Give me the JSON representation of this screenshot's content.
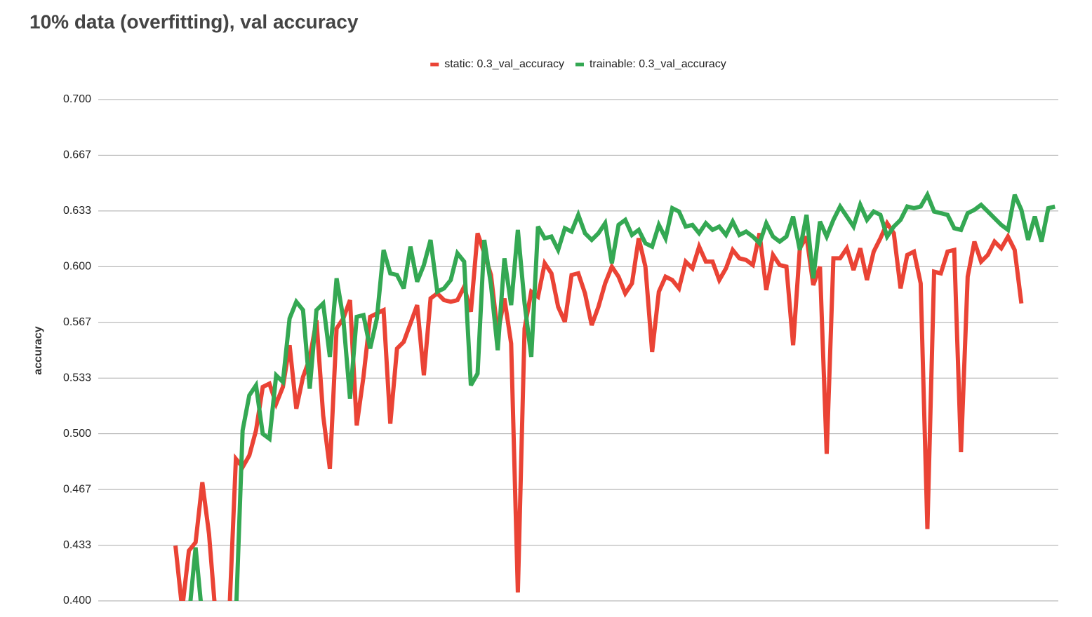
{
  "chart_data": {
    "type": "line",
    "title": "10% data (overfitting), val accuracy",
    "y_label": "accuracy",
    "categories": [
      null,
      null,
      null,
      null,
      null,
      null,
      null,
      null,
      null,
      null,
      null,
      null,
      null,
      null,
      null,
      null,
      null,
      null,
      null,
      null,
      null,
      null,
      null,
      null,
      null,
      null,
      null,
      null,
      null,
      null,
      null,
      null,
      null,
      null,
      null,
      null,
      null,
      null,
      null,
      null,
      null,
      null,
      null,
      null,
      null,
      null,
      null,
      null,
      null,
      null,
      null,
      null,
      null,
      null,
      null,
      null,
      null,
      null,
      null,
      null,
      null,
      null,
      null,
      null,
      null,
      null,
      null,
      null,
      null,
      null,
      null,
      null,
      null,
      null,
      null,
      null,
      null,
      null,
      null,
      null,
      null,
      null,
      null,
      null,
      null,
      null,
      null,
      null,
      null,
      null,
      null,
      null,
      null,
      null,
      null,
      null,
      null,
      null,
      null,
      null,
      null,
      null,
      null,
      null,
      null,
      null,
      null,
      null,
      null,
      null,
      null,
      null,
      null,
      null,
      null,
      null,
      null,
      null,
      null,
      null,
      null,
      null,
      null,
      null,
      null,
      null,
      null,
      null,
      null,
      null,
      null,
      null,
      null,
      null,
      null,
      null,
      null,
      null,
      null,
      null,
      null,
      null,
      null
    ],
    "series": [
      {
        "name": "static: 0.3_val_accuracy",
        "color": "#ea4335",
        "values": [
          null,
          null,
          null,
          null,
          null,
          null,
          null,
          null,
          null,
          null,
          null,
          0.433,
          0.395,
          0.43,
          0.435,
          0.471,
          0.44,
          0.39,
          0.39,
          0.39,
          0.485,
          0.48,
          0.487,
          0.502,
          0.528,
          0.53,
          0.518,
          0.528,
          0.553,
          0.515,
          0.534,
          0.545,
          0.568,
          0.511,
          0.479,
          0.563,
          0.569,
          0.58,
          0.505,
          0.534,
          0.57,
          0.572,
          0.574,
          0.506,
          0.551,
          0.555,
          0.566,
          0.577,
          0.535,
          0.581,
          0.584,
          0.58,
          0.579,
          0.58,
          0.588,
          0.573,
          0.62,
          0.608,
          0.595,
          0.56,
          0.581,
          0.554,
          0.405,
          0.563,
          0.585,
          0.582,
          0.602,
          0.596,
          0.576,
          0.567,
          0.595,
          0.596,
          0.584,
          0.565,
          0.576,
          0.59,
          0.6,
          0.594,
          0.584,
          0.59,
          0.617,
          0.6,
          0.549,
          0.585,
          0.594,
          0.592,
          0.587,
          0.603,
          0.599,
          0.612,
          0.603,
          0.603,
          0.592,
          0.599,
          0.61,
          0.605,
          0.604,
          0.601,
          0.62,
          0.586,
          0.607,
          0.601,
          0.6,
          0.553,
          0.611,
          0.618,
          0.589,
          0.6,
          0.488,
          0.605,
          0.605,
          0.611,
          0.598,
          0.611,
          0.592,
          0.609,
          0.617,
          0.626,
          0.62,
          0.587,
          0.607,
          0.609,
          0.59,
          0.443,
          0.597,
          0.596,
          0.609,
          0.61,
          0.489,
          0.594,
          0.615,
          0.603,
          0.607,
          0.615,
          0.611,
          0.618,
          0.61,
          0.578,
          null,
          null,
          null,
          null,
          null
        ]
      },
      {
        "name": "trainable: 0.3_val_accuracy",
        "color": "#34a853",
        "values": [
          null,
          null,
          null,
          null,
          null,
          null,
          null,
          null,
          null,
          null,
          null,
          null,
          null,
          0.39,
          0.432,
          0.39,
          0.39,
          0.39,
          0.39,
          0.39,
          0.39,
          0.502,
          0.523,
          0.529,
          0.5,
          0.497,
          0.535,
          0.531,
          0.569,
          0.579,
          0.574,
          0.527,
          0.574,
          0.578,
          0.546,
          0.593,
          0.569,
          0.521,
          0.57,
          0.571,
          0.551,
          0.569,
          0.61,
          0.596,
          0.595,
          0.587,
          0.612,
          0.591,
          0.601,
          0.616,
          0.585,
          0.587,
          0.592,
          0.608,
          0.603,
          0.529,
          0.536,
          0.616,
          0.589,
          0.55,
          0.605,
          0.577,
          0.622,
          0.578,
          0.546,
          0.624,
          0.617,
          0.618,
          0.61,
          0.623,
          0.621,
          0.631,
          0.62,
          0.616,
          0.62,
          0.626,
          0.602,
          0.625,
          0.628,
          0.619,
          0.622,
          0.614,
          0.612,
          0.625,
          0.617,
          0.635,
          0.633,
          0.624,
          0.625,
          0.62,
          0.626,
          0.622,
          0.624,
          0.619,
          0.627,
          0.619,
          0.621,
          0.618,
          0.614,
          0.626,
          0.618,
          0.615,
          0.618,
          0.63,
          0.61,
          0.631,
          0.593,
          0.627,
          0.618,
          0.628,
          0.636,
          0.63,
          0.624,
          0.637,
          0.628,
          0.633,
          0.631,
          0.618,
          0.624,
          0.628,
          0.636,
          0.635,
          0.636,
          0.643,
          0.633,
          0.632,
          0.631,
          0.623,
          0.622,
          0.632,
          0.634,
          0.637,
          0.633,
          0.629,
          0.625,
          0.622,
          0.643,
          0.634,
          0.616,
          0.63,
          0.615,
          0.635,
          0.636
        ]
      }
    ],
    "ylim": [
      0.4,
      0.7
    ],
    "yticks": [
      {
        "value": 0.4,
        "label": "0.400"
      },
      {
        "value": 0.43333,
        "label": "0.433"
      },
      {
        "value": 0.46667,
        "label": "0.467"
      },
      {
        "value": 0.5,
        "label": "0.500"
      },
      {
        "value": 0.53333,
        "label": "0.533"
      },
      {
        "value": 0.56667,
        "label": "0.567"
      },
      {
        "value": 0.6,
        "label": "0.600"
      },
      {
        "value": 0.63333,
        "label": "0.633"
      },
      {
        "value": 0.66667,
        "label": "0.667"
      },
      {
        "value": 0.7,
        "label": "0.700"
      }
    ],
    "grid": true,
    "legend": "top"
  }
}
